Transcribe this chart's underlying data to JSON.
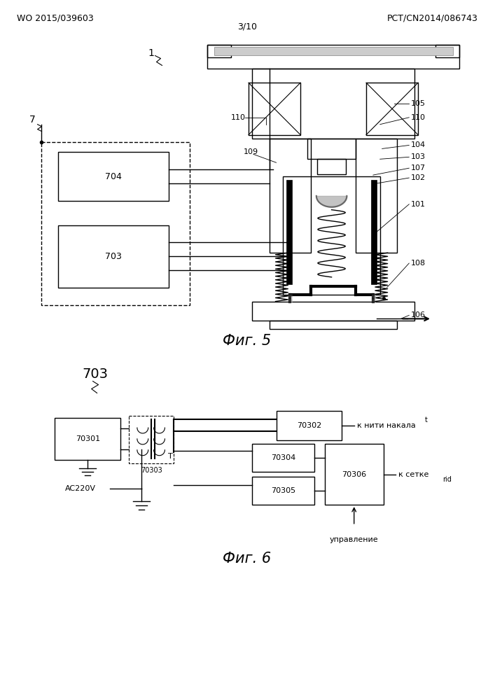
{
  "bg_color": "#ffffff",
  "header_left": "WO 2015/039603",
  "header_right": "PCT/CN2014/086743",
  "header_center": "3/10",
  "fig5_caption": "Фиг. 5",
  "fig6_caption": "Фиг. 6",
  "label_101": "101",
  "label_102": "102",
  "label_103": "103",
  "label_104": "104",
  "label_105": "105",
  "label_106": "106",
  "label_107": "107",
  "label_108": "108",
  "label_109": "109",
  "label_110": "110",
  "label_1": "1",
  "label_7": "7",
  "label_703": "703",
  "label_704": "704",
  "label_70301": "70301",
  "label_70302": "70302",
  "label_70303": "70303",
  "label_70304": "70304",
  "label_70305": "70305",
  "label_70306": "70306",
  "label_T": "T",
  "label_AC220V": "AC220V",
  "label_k_niti": "к нити накала",
  "label_k_setke": "к сетке",
  "label_rid": "rid",
  "label_t": "t",
  "label_upravlenie": "управление"
}
